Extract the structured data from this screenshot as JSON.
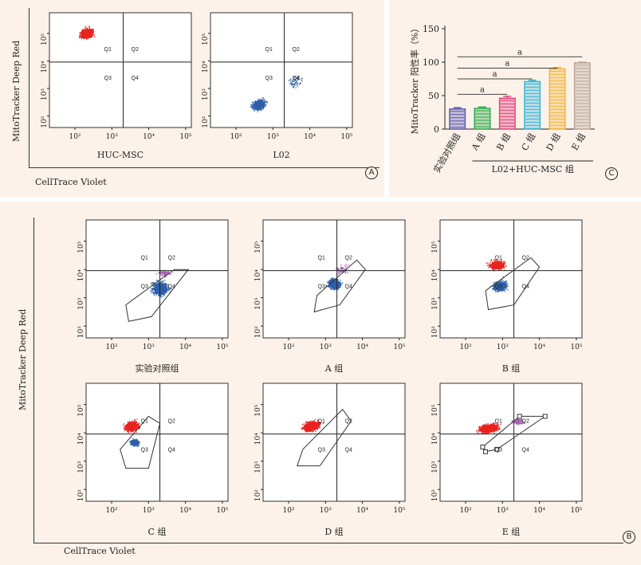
{
  "panel_a": {
    "ylabel": "MitoTracker Deep Red",
    "xlabel": "CellTrace Violet",
    "marker": "A",
    "plots": [
      {
        "label": "HUC-MSC",
        "pop": "red-high"
      },
      {
        "label": "L02",
        "pop": "blue-low"
      }
    ]
  },
  "panel_b": {
    "ylabel": "MitoTracker Deep Red",
    "xlabel": "CellTrace Violet",
    "marker": "B",
    "plots": [
      {
        "label": "实验对照组",
        "pop": "blue"
      },
      {
        "label": "A 组",
        "pop": "blue-sparse"
      },
      {
        "label": "B 组",
        "pop": "mix-b"
      },
      {
        "label": "C 组",
        "pop": "mix-c"
      },
      {
        "label": "D 组",
        "pop": "mix-d"
      },
      {
        "label": "E 组",
        "pop": "mix-e"
      }
    ]
  },
  "quadrants": [
    "Q1",
    "Q2",
    "Q3",
    "Q4"
  ],
  "ticks_x": [
    "10²",
    "10³",
    "10⁴",
    "10⁵"
  ],
  "ticks_y": [
    "10²",
    "10³",
    "10⁴",
    "10⁵"
  ],
  "colors": {
    "red": "#e8231f",
    "blue": "#2f5fa8",
    "purple": "#a25bb0",
    "frame": "#333333"
  },
  "panel_c": {
    "marker": "C",
    "ylabel": "MitoTracker 阳性率（%）",
    "group_label": "L02+HUC-MSC 组",
    "sig": [
      "a",
      "a",
      "a",
      "a"
    ]
  },
  "chart_data": {
    "type": "bar",
    "categories": [
      "实验对照组",
      "A 组",
      "B 组",
      "C 组",
      "D 组",
      "E 组"
    ],
    "values": [
      30,
      31,
      46,
      71,
      90,
      99
    ],
    "errors": [
      2,
      2,
      3,
      2,
      2,
      1
    ],
    "ylabel": "MitoTracker 阳性率（%）",
    "xlabel": "L02+HUC-MSC 组",
    "ylim": [
      0,
      150
    ],
    "yticks": [
      0,
      50,
      100,
      150
    ],
    "bar_colors": [
      "#5b5bb0",
      "#2aa84a",
      "#e0457a",
      "#3bb6d6",
      "#f3b43f",
      "#b8a898"
    ],
    "significance": [
      {
        "from": "实验对照组",
        "to": "B 组",
        "label": "a"
      },
      {
        "from": "实验对照组",
        "to": "C 组",
        "label": "a"
      },
      {
        "from": "实验对照组",
        "to": "D 组",
        "label": "a"
      },
      {
        "from": "实验对照组",
        "to": "E 组",
        "label": "a"
      }
    ]
  }
}
